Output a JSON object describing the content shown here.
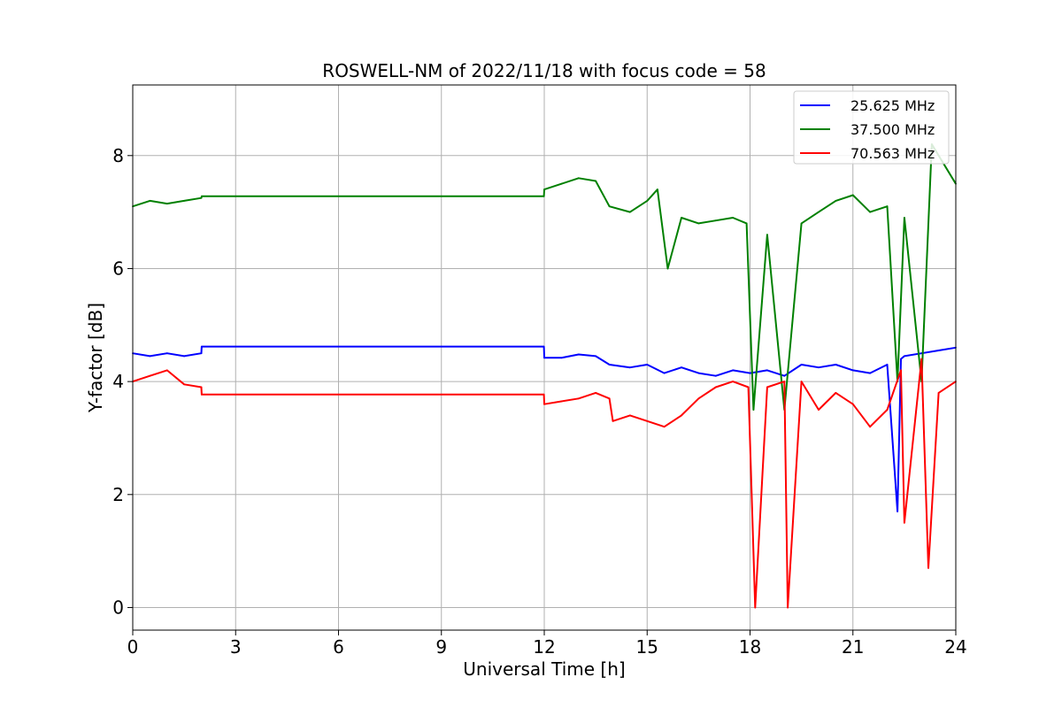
{
  "chart_data": {
    "type": "line",
    "title": "ROSWELL-NM of 2022/11/18 with focus code = 58",
    "xlabel": "Universal Time [h]",
    "ylabel": "Y-factor [dB]",
    "xlim": [
      0,
      24
    ],
    "ylim": [
      -0.4,
      9.25
    ],
    "xticks": [
      0,
      3,
      6,
      9,
      12,
      15,
      18,
      21,
      24
    ],
    "xtick_labels": [
      "0",
      "3",
      "6",
      "9",
      "12",
      "15",
      "18",
      "21",
      "24"
    ],
    "yticks": [
      0,
      2,
      4,
      6,
      8
    ],
    "ytick_labels": [
      "0",
      "2",
      "4",
      "6",
      "8"
    ],
    "grid": true,
    "legend_position": "top-right",
    "series": [
      {
        "name": "25.625 MHz",
        "color": "#0000ff",
        "x": [
          0,
          0.5,
          1.0,
          1.5,
          2.0,
          2.01,
          11.99,
          12.0,
          12.5,
          13.0,
          13.5,
          13.9,
          14.5,
          15.0,
          15.5,
          16.0,
          16.5,
          17.0,
          17.5,
          18.0,
          18.5,
          19.0,
          19.5,
          20.0,
          20.5,
          21.0,
          21.5,
          22.0,
          22.3,
          22.4,
          22.5,
          23.0,
          23.5,
          24.0
        ],
        "values": [
          4.5,
          4.45,
          4.5,
          4.45,
          4.5,
          4.62,
          4.62,
          4.42,
          4.42,
          4.48,
          4.45,
          4.3,
          4.25,
          4.3,
          4.15,
          4.25,
          4.15,
          4.1,
          4.2,
          4.15,
          4.2,
          4.1,
          4.3,
          4.25,
          4.3,
          4.2,
          4.15,
          4.3,
          1.7,
          4.4,
          4.45,
          4.5,
          4.55,
          4.6
        ]
      },
      {
        "name": "37.500 MHz",
        "color": "#008000",
        "x": [
          0,
          0.5,
          1.0,
          1.5,
          2.0,
          2.01,
          11.99,
          12.0,
          12.5,
          13.0,
          13.5,
          13.9,
          14.5,
          15.0,
          15.3,
          15.6,
          16.0,
          16.5,
          17.0,
          17.5,
          17.9,
          18.1,
          18.5,
          19.0,
          19.5,
          20.0,
          20.5,
          21.0,
          21.5,
          22.0,
          22.3,
          22.5,
          23.0,
          23.3,
          24.0
        ],
        "values": [
          7.1,
          7.2,
          7.15,
          7.2,
          7.25,
          7.28,
          7.28,
          7.4,
          7.5,
          7.6,
          7.55,
          7.1,
          7.0,
          7.2,
          7.4,
          6.0,
          6.9,
          6.8,
          6.85,
          6.9,
          6.8,
          3.5,
          6.6,
          3.5,
          6.8,
          7.0,
          7.2,
          7.3,
          7.0,
          7.1,
          4.0,
          6.9,
          4.0,
          8.2,
          7.5
        ]
      },
      {
        "name": "70.563 MHz",
        "color": "#ff0000",
        "x": [
          0,
          0.5,
          1.0,
          1.5,
          2.0,
          2.01,
          11.99,
          12.0,
          12.5,
          13.0,
          13.5,
          13.9,
          14.0,
          14.5,
          15.0,
          15.5,
          16.0,
          16.5,
          17.0,
          17.5,
          17.95,
          18.15,
          18.5,
          19.0,
          19.1,
          19.5,
          20.0,
          20.5,
          21.0,
          21.5,
          22.0,
          22.4,
          22.5,
          23.0,
          23.2,
          23.5,
          24.0
        ],
        "values": [
          4.0,
          4.1,
          4.2,
          3.95,
          3.9,
          3.77,
          3.77,
          3.6,
          3.65,
          3.7,
          3.8,
          3.7,
          3.3,
          3.4,
          3.3,
          3.2,
          3.4,
          3.7,
          3.9,
          4.0,
          3.9,
          0.0,
          3.9,
          4.0,
          0.0,
          4.0,
          3.5,
          3.8,
          3.6,
          3.2,
          3.5,
          4.2,
          1.5,
          4.4,
          0.7,
          3.8,
          4.0
        ]
      }
    ]
  }
}
